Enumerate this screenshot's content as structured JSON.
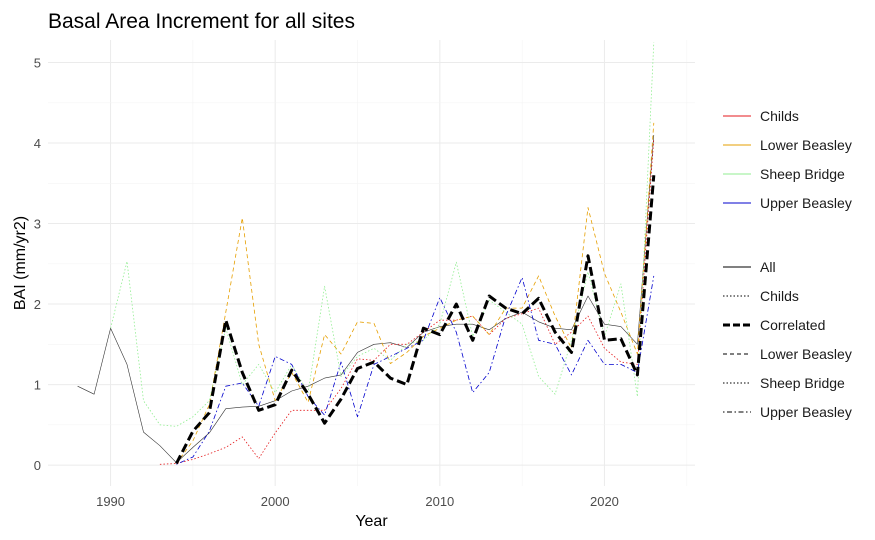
{
  "chart_data": {
    "type": "line",
    "title": "Basal Area Increment for all sites",
    "xlabel": "Year",
    "ylabel": "BAI (mm/yr2)",
    "xlim": [
      1986.2,
      2025.5
    ],
    "ylim": [
      -0.26,
      5.28
    ],
    "x_ticks": [
      1990,
      2000,
      2010,
      2020
    ],
    "y_ticks": [
      0,
      1,
      2,
      3,
      4,
      5
    ],
    "grid": true,
    "legend_position": "right",
    "colour_legend": [
      {
        "name": "Childs",
        "color": "#e41a1c"
      },
      {
        "name": "Lower Beasley",
        "color": "#e69f00"
      },
      {
        "name": "Sheep Bridge",
        "color": "#90ee90"
      },
      {
        "name": "Upper Beasley",
        "color": "#0000cd"
      }
    ],
    "linetype_legend": [
      {
        "name": "All",
        "dash": "solid"
      },
      {
        "name": "Childs",
        "dash": "dotted"
      },
      {
        "name": "Correlated",
        "dash": "dashed-thick"
      },
      {
        "name": "Lower Beasley",
        "dash": "dashed"
      },
      {
        "name": "Sheep Bridge",
        "dash": "dotted"
      },
      {
        "name": "Upper Beasley",
        "dash": "dotdash"
      }
    ],
    "series": [
      {
        "name": "All",
        "color": "#333333",
        "dash": "solid",
        "x": [
          1988,
          1989,
          1990,
          1991,
          1992,
          1993,
          1994,
          1995,
          1996,
          1997,
          1998,
          1999,
          2000,
          2001,
          2002,
          2003,
          2004,
          2005,
          2006,
          2007,
          2008,
          2009,
          2010,
          2011,
          2012,
          2013,
          2014,
          2015,
          2016,
          2017,
          2018,
          2019,
          2020,
          2021,
          2022,
          2023
        ],
        "y": [
          0.98,
          0.88,
          1.7,
          1.25,
          0.41,
          0.24,
          0.03,
          0.22,
          0.4,
          0.7,
          0.72,
          0.73,
          0.8,
          0.92,
          0.98,
          1.08,
          1.12,
          1.4,
          1.5,
          1.52,
          1.46,
          1.65,
          1.72,
          1.75,
          1.75,
          1.68,
          1.82,
          1.9,
          1.78,
          1.7,
          1.68,
          2.1,
          1.75,
          1.72,
          1.5,
          4.1
        ]
      },
      {
        "name": "Childs",
        "color": "#e41a1c",
        "dash": "dotted",
        "x": [
          1993,
          1994,
          1995,
          1996,
          1997,
          1998,
          1999,
          2000,
          2001,
          2002,
          2003,
          2004,
          2005,
          2006,
          2007,
          2008,
          2009,
          2010,
          2011,
          2012,
          2013,
          2014,
          2015,
          2016,
          2017,
          2018,
          2019,
          2020,
          2021,
          2022,
          2023
        ],
        "y": [
          0.01,
          0.02,
          0.07,
          0.14,
          0.22,
          0.35,
          0.08,
          0.4,
          0.68,
          0.68,
          0.68,
          0.95,
          1.32,
          1.3,
          1.5,
          1.5,
          1.65,
          1.8,
          1.8,
          1.85,
          1.62,
          1.82,
          1.88,
          1.95,
          1.5,
          1.65,
          1.85,
          1.45,
          1.28,
          1.25,
          4.05
        ]
      },
      {
        "name": "Lower Beasley",
        "color": "#e69f00",
        "dash": "dashed",
        "x": [
          1994,
          1995,
          1996,
          1997,
          1998,
          1999,
          2000,
          2001,
          2002,
          2003,
          2004,
          2005,
          2006,
          2007,
          2008,
          2009,
          2010,
          2011,
          2012,
          2013,
          2014,
          2015,
          2016,
          2017,
          2018,
          2019,
          2020,
          2021,
          2022,
          2023
        ],
        "y": [
          0.02,
          0.3,
          0.75,
          1.9,
          3.07,
          1.5,
          0.8,
          1.15,
          0.78,
          1.62,
          1.38,
          1.78,
          1.76,
          1.26,
          1.4,
          1.6,
          1.7,
          1.8,
          1.85,
          1.62,
          1.95,
          1.95,
          2.35,
          1.85,
          1.45,
          3.2,
          2.38,
          1.9,
          1.38,
          4.25
        ]
      },
      {
        "name": "Sheep Bridge",
        "color": "#90ee90",
        "dash": "dotted",
        "x": [
          1990,
          1991,
          1992,
          1993,
          1994,
          1995,
          1996,
          1997,
          1998,
          1999,
          2000,
          2001,
          2002,
          2003,
          2004,
          2005,
          2006,
          2007,
          2008,
          2009,
          2010,
          2011,
          2012,
          2013,
          2014,
          2015,
          2016,
          2017,
          2018,
          2019,
          2020,
          2021,
          2022,
          2023
        ],
        "y": [
          1.7,
          2.53,
          0.8,
          0.5,
          0.48,
          0.6,
          0.8,
          1.7,
          1.0,
          1.25,
          0.9,
          1.25,
          0.9,
          2.22,
          1.1,
          1.35,
          1.45,
          1.3,
          1.5,
          1.55,
          1.75,
          2.52,
          1.6,
          2.05,
          1.9,
          1.75,
          1.1,
          0.88,
          1.55,
          2.4,
          1.6,
          2.25,
          0.85,
          5.25
        ]
      },
      {
        "name": "Upper Beasley",
        "color": "#0000cd",
        "dash": "dotdash",
        "x": [
          1994,
          1995,
          1996,
          1997,
          1998,
          1999,
          2000,
          2001,
          2002,
          2003,
          2004,
          2005,
          2006,
          2007,
          2008,
          2009,
          2010,
          2011,
          2012,
          2013,
          2014,
          2015,
          2016,
          2017,
          2018,
          2019,
          2020,
          2021,
          2022,
          2023
        ],
        "y": [
          0.01,
          0.1,
          0.42,
          0.98,
          1.02,
          0.73,
          1.35,
          1.25,
          0.85,
          0.62,
          1.28,
          0.6,
          1.25,
          1.35,
          1.45,
          1.55,
          2.08,
          1.65,
          0.9,
          1.15,
          1.85,
          2.33,
          1.55,
          1.5,
          1.12,
          1.55,
          1.25,
          1.25,
          1.15,
          2.35
        ]
      },
      {
        "name": "Correlated",
        "color": "#000000",
        "dash": "dashed-thick",
        "x": [
          1994,
          1995,
          1996,
          1997,
          1998,
          1999,
          2000,
          2001,
          2002,
          2003,
          2004,
          2005,
          2006,
          2007,
          2008,
          2009,
          2010,
          2011,
          2012,
          2013,
          2014,
          2015,
          2016,
          2017,
          2018,
          2019,
          2020,
          2021,
          2022,
          2023
        ],
        "y": [
          0.02,
          0.42,
          0.65,
          1.8,
          1.15,
          0.68,
          0.75,
          1.18,
          0.88,
          0.52,
          0.82,
          1.2,
          1.28,
          1.08,
          1.0,
          1.7,
          1.62,
          2.0,
          1.55,
          2.1,
          1.95,
          1.88,
          2.07,
          1.65,
          1.4,
          2.6,
          1.55,
          1.57,
          1.12,
          3.6
        ]
      }
    ]
  }
}
